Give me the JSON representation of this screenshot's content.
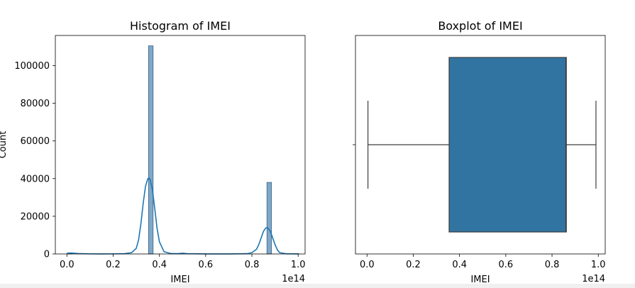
{
  "chart_data": [
    {
      "type": "histogram",
      "title": "Histogram of IMEI",
      "xlabel": "IMEI",
      "ylabel": "Count",
      "x_offset_text": "1e14",
      "xlim": [
        -0.05,
        1.03
      ],
      "ylim": [
        0,
        116000
      ],
      "xticks": [
        0.0,
        0.2,
        0.4,
        0.6,
        0.8,
        1.0
      ],
      "xtick_labels": [
        "0.0",
        "0.2",
        "0.4",
        "0.6",
        "0.8",
        "1.0"
      ],
      "yticks": [
        0,
        20000,
        40000,
        60000,
        80000,
        100000
      ],
      "ytick_labels": [
        "0",
        "20000",
        "40000",
        "60000",
        "80000",
        "100000"
      ],
      "bar_width": 0.0198,
      "bars": [
        {
          "x": 0.003,
          "value": 300
        },
        {
          "x": 0.353,
          "value": 110500
        },
        {
          "x": 0.489,
          "value": 150
        },
        {
          "x": 0.865,
          "value": 38000
        },
        {
          "x": 0.983,
          "value": 150
        }
      ],
      "kde": {
        "x": [
          0.0,
          0.02,
          0.05,
          0.1,
          0.15,
          0.2,
          0.25,
          0.28,
          0.3,
          0.31,
          0.32,
          0.33,
          0.34,
          0.35,
          0.355,
          0.36,
          0.37,
          0.38,
          0.39,
          0.4,
          0.42,
          0.45,
          0.48,
          0.5,
          0.52,
          0.6,
          0.7,
          0.78,
          0.8,
          0.82,
          0.83,
          0.84,
          0.85,
          0.86,
          0.868,
          0.88,
          0.89,
          0.9,
          0.91,
          0.92,
          0.95,
          1.0
        ],
        "y": [
          400,
          500,
          200,
          50,
          30,
          50,
          150,
          700,
          3000,
          7500,
          16000,
          27000,
          36000,
          40000,
          40300,
          39500,
          34000,
          24000,
          13500,
          6500,
          1200,
          200,
          150,
          400,
          150,
          30,
          30,
          150,
          700,
          2500,
          5000,
          8500,
          12000,
          13800,
          13900,
          12000,
          8500,
          5000,
          2200,
          700,
          100,
          0
        ]
      },
      "colors": {
        "bar": "#7fa8c9",
        "bar_edge": "#3c6184",
        "line": "#1f77b4"
      }
    },
    {
      "type": "boxplot",
      "title": "Boxplot of IMEI",
      "xlabel": "IMEI",
      "x_offset_text": "1e14",
      "xlim": [
        -0.05,
        1.03
      ],
      "xticks": [
        0.0,
        0.2,
        0.4,
        0.6,
        0.8,
        1.0
      ],
      "xtick_labels": [
        "0.0",
        "0.2",
        "0.4",
        "0.6",
        "0.8",
        "1.0"
      ],
      "stats": {
        "whislo": 0.004,
        "q1": 0.355,
        "median": 0.86,
        "q3": 0.862,
        "whishi": 0.99
      },
      "colors": {
        "box": "#3274a1",
        "line": "#3d3d3d"
      }
    }
  ]
}
